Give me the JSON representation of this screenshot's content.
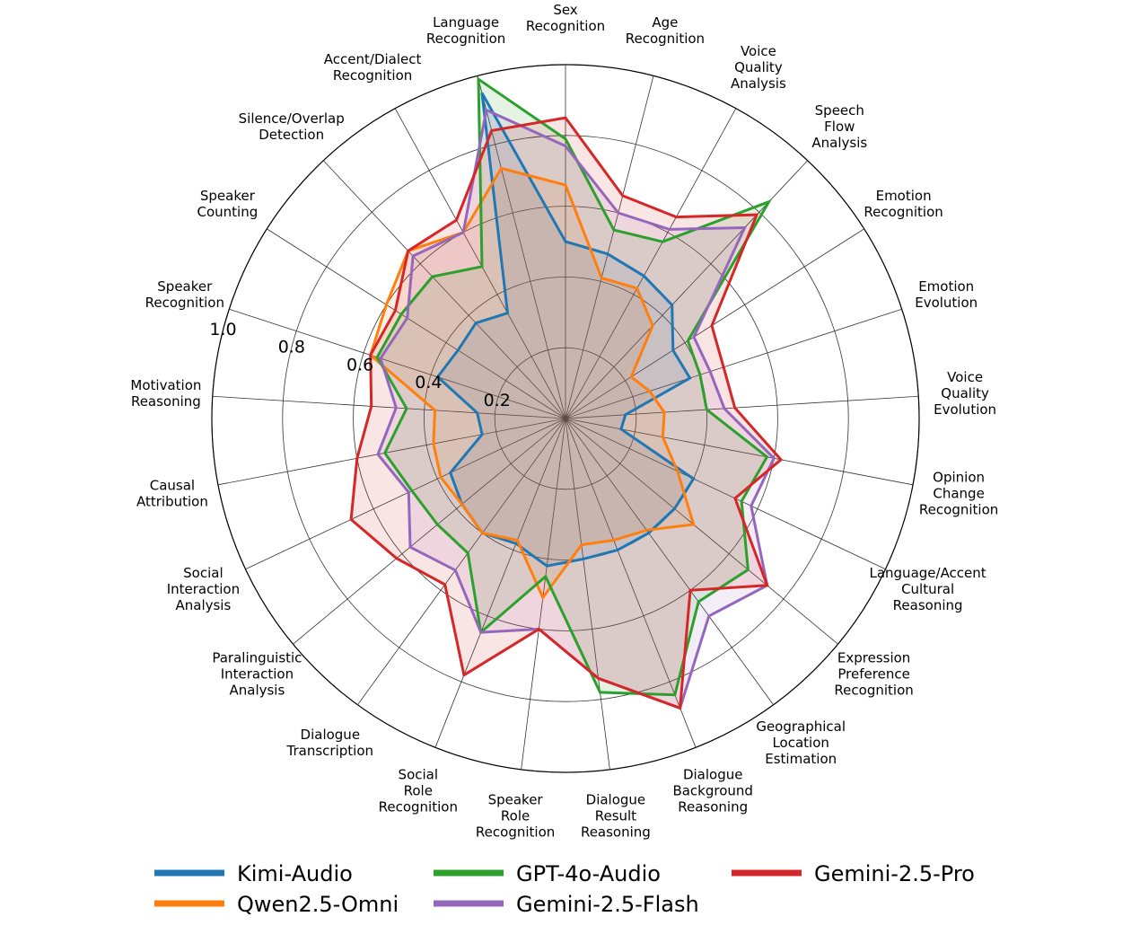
{
  "chart_data": {
    "type": "radar",
    "categories": [
      "Sex\nRecognition",
      "Age\nRecognition",
      "Voice\nQuality\nAnalysis",
      "Speech\nFlow\nAnalysis",
      "Emotion\nRecognition",
      "Emotion\nEvolution",
      "Voice\nQuality\nEvolution",
      "Opinion\nChange\nRecognition",
      "Language/Accent\nCultural\nReasoning",
      "Expression\nPreference\nRecognition",
      "Geographical\nLocation\nEstimation",
      "Dialogue\nBackground\nReasoning",
      "Dialogue\nResult\nReasoning",
      "Speaker\nRole\nRecognition",
      "Social\nRole\nRecognition",
      "Dialogue\nTranscription",
      "Paralinguistic\nInteraction\nAnalysis",
      "Social\nInteraction\nAnalysis",
      "Causal\nAttribution",
      "Motivation\nReasoning",
      "Speaker\nRecognition",
      "Speaker\nCounting",
      "Silence/Overlap\nDetection",
      "Accent/Dialect\nRecognition",
      "Language\nRecognition"
    ],
    "rlim": [
      0,
      1.0
    ],
    "rticks": [
      "0.2",
      "0.4",
      "0.6",
      "0.8",
      "1.0"
    ],
    "series": [
      {
        "name": "Kimi-Audio",
        "color": "#1f77b4",
        "values": [
          0.5,
          0.48,
          0.46,
          0.44,
          0.36,
          0.37,
          0.17,
          0.16,
          0.4,
          0.4,
          0.4,
          0.4,
          0.4,
          0.42,
          0.38,
          0.4,
          0.38,
          0.36,
          0.24,
          0.25,
          0.38,
          0.36,
          0.37,
          0.34,
          0.95
        ]
      },
      {
        "name": "Qwen2.5-Omni",
        "color": "#ff7f0e",
        "values": [
          0.66,
          0.41,
          0.42,
          0.36,
          0.22,
          0.25,
          0.28,
          0.28,
          0.35,
          0.47,
          0.39,
          0.37,
          0.36,
          0.51,
          0.37,
          0.4,
          0.38,
          0.39,
          0.38,
          0.37,
          0.58,
          0.6,
          0.65,
          0.6,
          0.73
        ]
      },
      {
        "name": "GPT-4o-Audio",
        "color": "#2ca02c",
        "values": [
          0.79,
          0.55,
          0.57,
          0.84,
          0.41,
          0.4,
          0.4,
          0.58,
          0.55,
          0.67,
          0.64,
          0.84,
          0.78,
          0.45,
          0.65,
          0.47,
          0.47,
          0.48,
          0.52,
          0.45,
          0.56,
          0.55,
          0.55,
          0.49,
          0.99
        ]
      },
      {
        "name": "Gemini-2.5-Flash",
        "color": "#9467bd",
        "values": [
          0.77,
          0.6,
          0.61,
          0.74,
          0.43,
          0.43,
          0.45,
          0.6,
          0.58,
          0.74,
          0.69,
          0.88,
          0.74,
          0.6,
          0.65,
          0.53,
          0.57,
          0.49,
          0.54,
          0.48,
          0.55,
          0.53,
          0.63,
          0.6,
          0.9
        ]
      },
      {
        "name": "Gemini-2.5-Pro",
        "color": "#d62728",
        "values": [
          0.85,
          0.65,
          0.65,
          0.79,
          0.49,
          0.47,
          0.48,
          0.62,
          0.53,
          0.74,
          0.6,
          0.88,
          0.74,
          0.6,
          0.78,
          0.58,
          0.62,
          0.67,
          0.6,
          0.55,
          0.58,
          0.57,
          0.65,
          0.64,
          0.84
        ]
      }
    ]
  }
}
